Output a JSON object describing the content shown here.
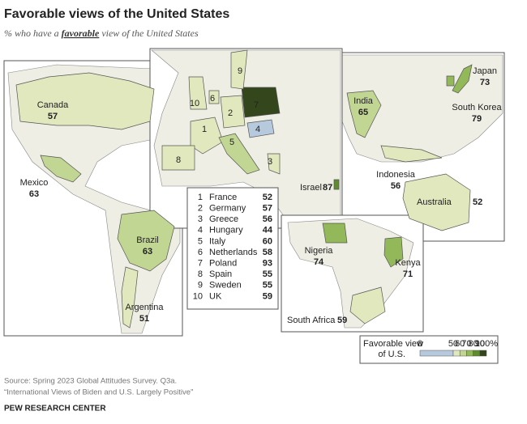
{
  "header": {
    "title": "Favorable views of the United States",
    "subtitle_prefix": "% who have a",
    "subtitle_emphasis": "favorable",
    "subtitle_suffix": "view of the United States"
  },
  "countries": [
    {
      "name": "Canada",
      "value": 57
    },
    {
      "name": "Mexico",
      "value": 63
    },
    {
      "name": "Brazil",
      "value": 63
    },
    {
      "name": "Argentina",
      "value": 51
    },
    {
      "name": "Israel",
      "value": 87
    },
    {
      "name": "India",
      "value": 65
    },
    {
      "name": "Japan",
      "value": 73
    },
    {
      "name": "South Korea",
      "value": 79
    },
    {
      "name": "Indonesia",
      "value": 56
    },
    {
      "name": "Australia",
      "value": 52
    },
    {
      "name": "Nigeria",
      "value": 74
    },
    {
      "name": "Kenya",
      "value": 71
    },
    {
      "name": "South Africa",
      "value": 59
    }
  ],
  "europe_list": [
    {
      "number": 1,
      "name": "France",
      "value": 52
    },
    {
      "number": 2,
      "name": "Germany",
      "value": 57
    },
    {
      "number": 3,
      "name": "Greece",
      "value": 56
    },
    {
      "number": 4,
      "name": "Hungary",
      "value": 44
    },
    {
      "number": 5,
      "name": "Italy",
      "value": 60
    },
    {
      "number": 6,
      "name": "Netherlands",
      "value": 58
    },
    {
      "number": 7,
      "name": "Poland",
      "value": 93
    },
    {
      "number": 8,
      "name": "Spain",
      "value": 55
    },
    {
      "number": 9,
      "name": "Sweden",
      "value": 55
    },
    {
      "number": 10,
      "name": "UK",
      "value": 59
    }
  ],
  "legend": {
    "title_line1": "Favorable view",
    "title_line2": "of U.S.",
    "ticks": [
      0,
      50,
      60,
      70,
      80,
      90,
      {
        "value": 100,
        "label": "100%"
      }
    ],
    "colors": [
      "#b7c9dd",
      "#e2e8bd",
      "#c2d694",
      "#93b85a",
      "#5f8c2e",
      "#34461c"
    ]
  },
  "footer": {
    "source": "Source: Spring 2023 Global Attitudes Survey. Q3a.",
    "report": "“International Views of Biden and U.S. Largely Positive”",
    "org": "PEW RESEARCH CENTER"
  }
}
